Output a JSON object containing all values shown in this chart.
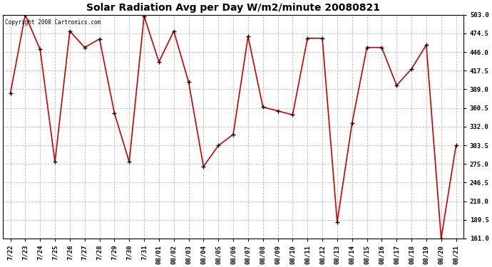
{
  "title": "Solar Radiation Avg per Day W/m2/minute 20080821",
  "copyright_text": "Copyright 2008 Cartronics.com",
  "dates": [
    "7/22",
    "7/23",
    "7/24",
    "7/25",
    "7/26",
    "7/27",
    "7/28",
    "7/29",
    "7/30",
    "7/31",
    "08/01",
    "08/02",
    "08/03",
    "08/04",
    "08/05",
    "08/06",
    "08/07",
    "08/08",
    "08/09",
    "08/10",
    "08/11",
    "08/12",
    "08/13",
    "08/14",
    "08/15",
    "08/16",
    "08/17",
    "08/18",
    "08/19",
    "08/20",
    "08/21"
  ],
  "values": [
    383,
    503,
    450,
    278,
    478,
    453,
    466,
    353,
    278,
    501,
    431,
    478,
    400,
    271,
    303,
    320,
    470,
    362,
    356,
    350,
    467,
    467,
    186,
    337,
    453,
    453,
    395,
    420,
    457,
    161,
    303
  ],
  "line_color": "#cc0000",
  "marker_color": "#000000",
  "bg_color": "#ffffff",
  "plot_bg_color": "#ffffff",
  "grid_color": "#bbbbbb",
  "yticks": [
    161.0,
    189.5,
    218.0,
    246.5,
    275.0,
    303.5,
    332.0,
    360.5,
    389.0,
    417.5,
    446.0,
    474.5,
    503.0
  ],
  "ymin": 161.0,
  "ymax": 503.0,
  "title_fontsize": 10,
  "tick_fontsize": 6.5,
  "copyright_fontsize": 5.5,
  "fig_width": 6.9,
  "fig_height": 3.75,
  "dpi": 100
}
